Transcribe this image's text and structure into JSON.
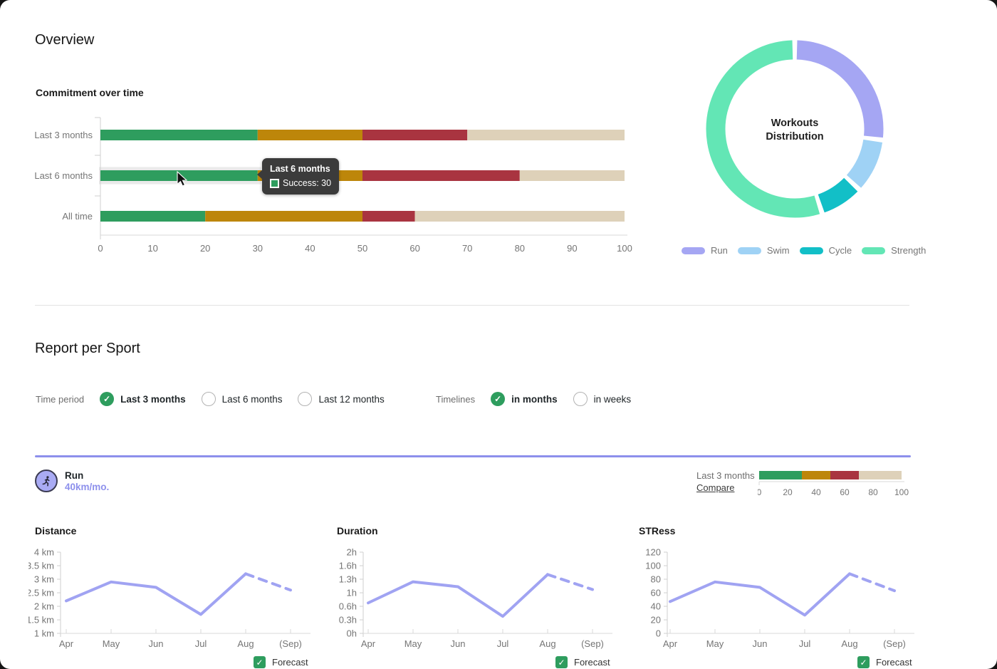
{
  "titles": {
    "overview": "Overview",
    "report": "Report per Sport"
  },
  "colors": {
    "bar_segments": [
      "#2e9d5e",
      "#bd860a",
      "#a93440",
      "#ded1b9"
    ],
    "line": "#a0a3f2",
    "accent": "#8d90ec",
    "green": "#2e9d5e",
    "axis_text": "#757575"
  },
  "tooltip": {
    "title": "Last 6 months",
    "label": "Success",
    "value": 30
  },
  "filters": {
    "time_period": {
      "label": "Time period",
      "options": [
        {
          "label": "Last 3 months",
          "selected": true
        },
        {
          "label": "Last 6 months",
          "selected": false
        },
        {
          "label": "Last 12 months",
          "selected": false
        }
      ]
    },
    "timelines": {
      "label": "Timelines",
      "options": [
        {
          "label": "in months",
          "selected": true
        },
        {
          "label": "in weeks",
          "selected": false
        }
      ]
    }
  },
  "sport": {
    "name": "Run",
    "target": "40km/mo.",
    "period_label": "Last 3 months",
    "compare_label": "Compare"
  },
  "forecast_label": "Forecast",
  "chart_data": {
    "commitment": {
      "type": "bar",
      "stacked": true,
      "orientation": "horizontal",
      "title": "Commitment over time",
      "categories": [
        "Last 3 months",
        "Last 6 months",
        "All time"
      ],
      "series": [
        {
          "name": "Success",
          "color": "#2e9d5e",
          "values": [
            30,
            30,
            20
          ]
        },
        {
          "color": "#bd860a",
          "values": [
            20,
            20,
            30
          ]
        },
        {
          "color": "#a93440",
          "values": [
            20,
            30,
            10
          ]
        },
        {
          "color": "#ded1b9",
          "values": [
            30,
            20,
            40
          ]
        }
      ],
      "xlim": [
        0,
        100
      ],
      "x_ticks": [
        0,
        10,
        20,
        30,
        40,
        50,
        60,
        70,
        80,
        90,
        100
      ],
      "hover": {
        "category": "Last 6 months",
        "series": "Success",
        "value": 30
      }
    },
    "donut": {
      "type": "pie",
      "center_lines": [
        "Workouts",
        "Distribution"
      ],
      "segments": [
        {
          "label": "Run",
          "value": 27,
          "color": "#a5a6f3"
        },
        {
          "label": "Swim",
          "value": 10,
          "color": "#9fd2f5"
        },
        {
          "label": "Cycle",
          "value": 8,
          "color": "#12bfc7"
        },
        {
          "label": "Strength",
          "value": 55,
          "color": "#63e6b5"
        }
      ],
      "legend_position": "bottom"
    },
    "mini_bar": {
      "type": "bar",
      "stacked": true,
      "values": [
        30,
        20,
        20,
        30
      ],
      "colors": [
        "#2e9d5e",
        "#bd860a",
        "#a93440",
        "#ded1b9"
      ],
      "xlim": [
        0,
        100
      ],
      "x_ticks": [
        0,
        20,
        40,
        60,
        80,
        100
      ]
    },
    "line_charts": [
      {
        "type": "line",
        "title": "Distance",
        "x": [
          "Apr",
          "May",
          "Jun",
          "Jul",
          "Aug",
          "(Sep)"
        ],
        "values": [
          2.2,
          2.9,
          2.7,
          1.7,
          3.2,
          2.6
        ],
        "y_ticks": [
          "4 km",
          "3.5 km",
          "3 km",
          "2.5 km",
          "2 km",
          "1.5 km",
          "1 km"
        ],
        "ylim": [
          1,
          4
        ],
        "forecast_from_index": 4
      },
      {
        "type": "line",
        "title": "Duration",
        "x": [
          "Apr",
          "May",
          "Jun",
          "Jul",
          "Aug",
          "(Sep)"
        ],
        "values": [
          0.75,
          1.27,
          1.15,
          0.42,
          1.45,
          1.08
        ],
        "y_ticks": [
          "2h",
          "1.6h",
          "1.3h",
          "1h",
          "0.6h",
          "0.3h",
          "0h"
        ],
        "ylim": [
          0,
          2
        ],
        "forecast_from_index": 4
      },
      {
        "type": "line",
        "title": "STRess",
        "x": [
          "Apr",
          "May",
          "Jun",
          "Jul",
          "Aug",
          "(Sep)"
        ],
        "values": [
          47,
          76,
          68,
          27,
          88,
          63
        ],
        "y_ticks": [
          "120",
          "100",
          "80",
          "60",
          "40",
          "20",
          "0"
        ],
        "ylim": [
          0,
          120
        ],
        "forecast_from_index": 4
      }
    ]
  }
}
